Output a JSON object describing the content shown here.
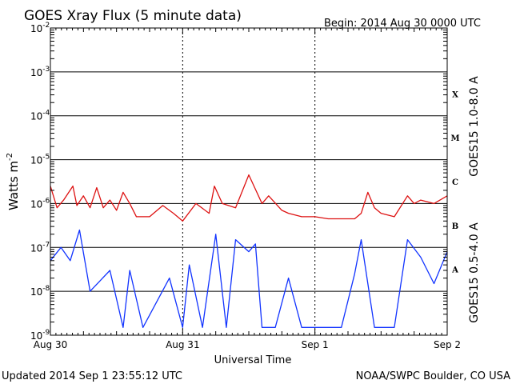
{
  "header": {
    "title": "GOES Xray Flux (5 minute data)",
    "begin": "Begin:  2014 Aug 30 0000 UTC"
  },
  "footer": {
    "updated": "Updated 2014 Sep  1 23:55:12 UTC",
    "credit": "NOAA/SWPC Boulder, CO USA"
  },
  "colors": {
    "long": "#dd1111",
    "short": "#1133ff",
    "axis": "#000000"
  },
  "chart_data": {
    "type": "line",
    "title": "GOES Xray Flux (5 minute data)",
    "xlabel": "Universal Time",
    "ylabel": "Watts m",
    "ylabel_sup": "-2",
    "yscale": "log",
    "ylim": [
      1e-09,
      0.01
    ],
    "xlim": [
      0,
      3
    ],
    "x_unit": "days since 2014 Aug 30 0000 UTC",
    "x_ticks": [
      {
        "value": 0,
        "label": "Aug 30"
      },
      {
        "value": 1,
        "label": "Aug 31"
      },
      {
        "value": 2,
        "label": "Sep 1"
      },
      {
        "value": 3,
        "label": "Sep 2"
      }
    ],
    "y_ticks": [
      {
        "base": "10",
        "exp": "-9"
      },
      {
        "base": "10",
        "exp": "-8"
      },
      {
        "base": "10",
        "exp": "-7"
      },
      {
        "base": "10",
        "exp": "-6"
      },
      {
        "base": "10",
        "exp": "-5"
      },
      {
        "base": "10",
        "exp": "-4"
      },
      {
        "base": "10",
        "exp": "-3"
      },
      {
        "base": "10",
        "exp": "-2"
      }
    ],
    "flare_classes": [
      {
        "label": "A",
        "value": 1e-08
      },
      {
        "label": "B",
        "value": 1e-07
      },
      {
        "label": "C",
        "value": 1e-06
      },
      {
        "label": "M",
        "value": 1e-05
      },
      {
        "label": "X",
        "value": 0.0001
      }
    ],
    "grid": true,
    "series": [
      {
        "name": "GOES15 1.0-8.0 A",
        "color": "#dd1111",
        "x": [
          0,
          0.05,
          0.1,
          0.17,
          0.2,
          0.25,
          0.3,
          0.35,
          0.4,
          0.45,
          0.5,
          0.55,
          0.6,
          0.65,
          0.75,
          0.85,
          0.93,
          1,
          1.1,
          1.2,
          1.24,
          1.3,
          1.4,
          1.5,
          1.6,
          1.65,
          1.75,
          1.8,
          1.9,
          2,
          2.1,
          2.2,
          2.3,
          2.35,
          2.4,
          2.45,
          2.5,
          2.6,
          2.7,
          2.75,
          2.8,
          2.9,
          3
        ],
        "y": [
          2.5e-06,
          8e-07,
          1.2e-06,
          2.5e-06,
          9e-07,
          1.5e-06,
          8e-07,
          2.3e-06,
          8e-07,
          1.2e-06,
          7e-07,
          1.8e-06,
          1e-06,
          5e-07,
          5e-07,
          9e-07,
          6e-07,
          4e-07,
          1e-06,
          6e-07,
          2.5e-06,
          1e-06,
          8e-07,
          4.5e-06,
          1e-06,
          1.5e-06,
          7e-07,
          6e-07,
          5e-07,
          5e-07,
          4.5e-07,
          4.5e-07,
          4.5e-07,
          6e-07,
          1.8e-06,
          8e-07,
          6e-07,
          5e-07,
          1.5e-06,
          1e-06,
          1.2e-06,
          1e-06,
          1.5e-06
        ]
      },
      {
        "name": "GOES15 0.5-4.0 A",
        "color": "#1133ff",
        "x": [
          0,
          0.08,
          0.15,
          0.22,
          0.3,
          0.45,
          0.55,
          0.6,
          0.7,
          0.9,
          1,
          1.05,
          1.15,
          1.25,
          1.33,
          1.4,
          1.5,
          1.55,
          1.6,
          1.7,
          1.8,
          1.9,
          2,
          2.1,
          2.2,
          2.3,
          2.35,
          2.45,
          2.6,
          2.7,
          2.8,
          2.85,
          2.9,
          3
        ],
        "y": [
          5e-08,
          1e-07,
          5e-08,
          2.5e-07,
          1e-08,
          3e-08,
          1.5e-09,
          3e-08,
          1.5e-09,
          2e-08,
          1.5e-09,
          4e-08,
          1.5e-09,
          2e-07,
          1.5e-09,
          1.5e-07,
          8e-08,
          1.2e-07,
          1.5e-09,
          1.5e-09,
          2e-08,
          1.5e-09,
          1.5e-09,
          1.5e-09,
          1.5e-09,
          2.5e-08,
          1.5e-07,
          1.5e-09,
          1.5e-09,
          1.5e-07,
          6e-08,
          3e-08,
          1.5e-08,
          8e-08
        ]
      }
    ]
  }
}
